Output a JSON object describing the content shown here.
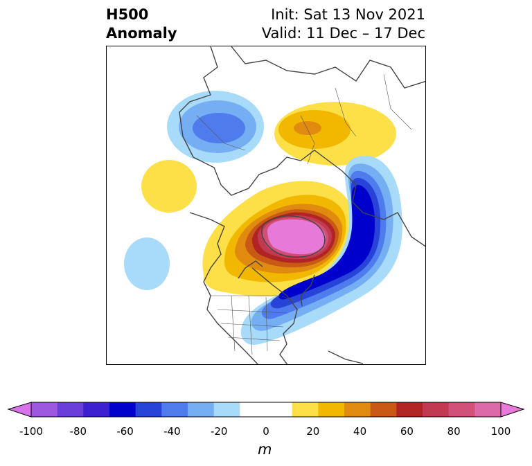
{
  "title": {
    "line1": "H500",
    "line2": "Anomaly",
    "init": "Init: Sat 13 Nov 2021",
    "valid": "Valid: 11 Dec – 17 Dec"
  },
  "colorbar": {
    "unit": "m",
    "min": -100,
    "max": 100,
    "ticks": [
      "-100",
      "-80",
      "-60",
      "-40",
      "-20",
      "0",
      "20",
      "40",
      "60",
      "80",
      "100"
    ],
    "colors": [
      "#d873ec",
      "#9c59e0",
      "#6a3fd9",
      "#3d20d0",
      "#0000cd",
      "#2743d8",
      "#4f7cec",
      "#76aef3",
      "#a8daf9",
      "#ffffff",
      "#ffffff",
      "#fde047",
      "#f2b800",
      "#e08a10",
      "#c85a15",
      "#b02424",
      "#c23a52",
      "#d05078",
      "#dc6aa8",
      "#e77ad8"
    ]
  },
  "map": {
    "projection": "polar-stereographic",
    "region": "Northern Hemisphere",
    "features": [
      "coastlines",
      "country-borders",
      "us-state-borders"
    ]
  }
}
